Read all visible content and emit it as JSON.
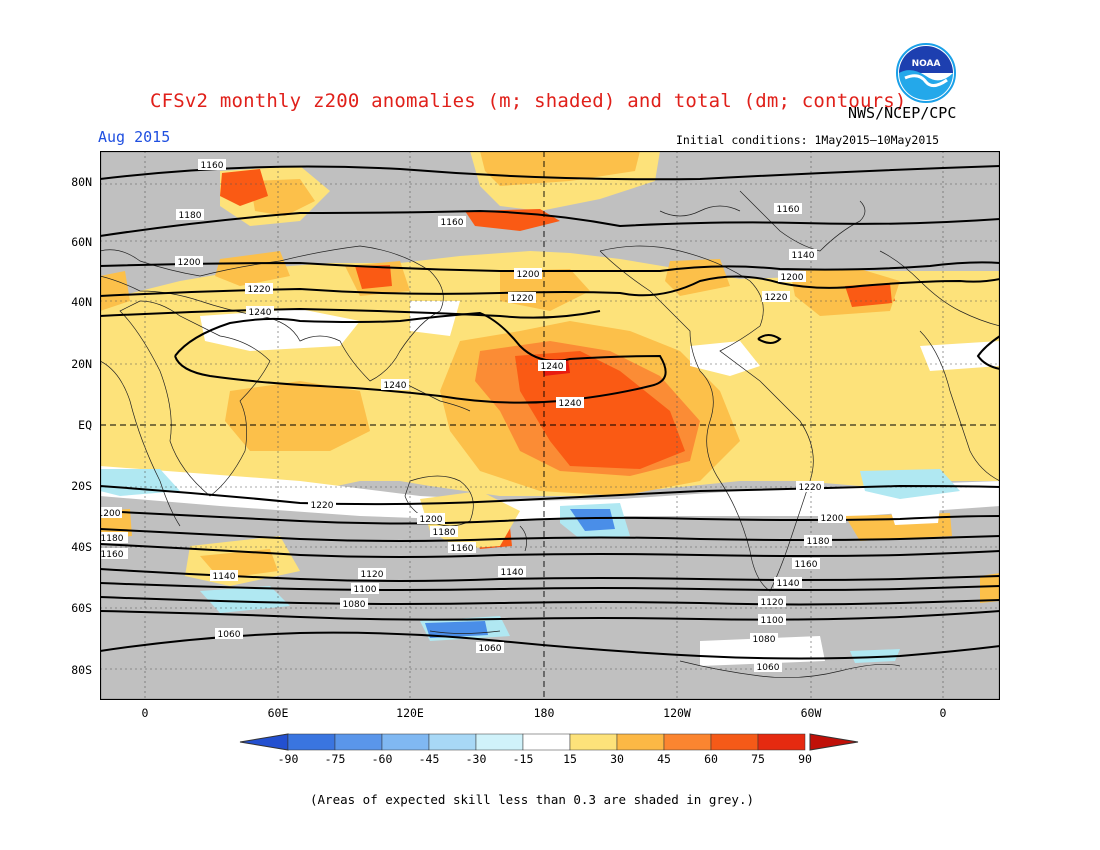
{
  "header": {
    "title": "CFSv2 monthly z200 anomalies (m; shaded) and total (dm; contours)",
    "agency": "NWS/NCEP/CPC",
    "month": "Aug 2015",
    "initial_conditions": "Initial conditions: 1May2015–10May2015",
    "logo_text": "NOAA"
  },
  "map": {
    "lat_labels": [
      "80N",
      "60N",
      "40N",
      "20N",
      "EQ",
      "20S",
      "40S",
      "60S",
      "80S"
    ],
    "lon_labels": [
      "0",
      "60E",
      "120E",
      "180",
      "120W",
      "60W",
      "0"
    ],
    "contour_labels": [
      "1060",
      "1080",
      "1100",
      "1120",
      "1140",
      "1160",
      "1180",
      "1200",
      "1220",
      "1240"
    ],
    "colors": {
      "grey": "#c0c0c0",
      "white": "#ffffff",
      "yellow": "#fde27a",
      "light_orange": "#fcc04a",
      "orange": "#fb8c35",
      "dark_orange": "#fa5a14",
      "red": "#e81c10",
      "light_blue": "#b0e8f2",
      "mid_blue": "#7fbaf0",
      "blue": "#4a8ee8",
      "dark_blue": "#2860d8"
    }
  },
  "colorbar": {
    "labels": [
      "-90",
      "-75",
      "-60",
      "-45",
      "-30",
      "-15",
      "15",
      "30",
      "45",
      "60",
      "75",
      "90"
    ],
    "colors": [
      "#2350d0",
      "#3a75e0",
      "#5a96ea",
      "#80b8f2",
      "#a8d8f6",
      "#d0f2fa",
      "#ffffff",
      "#fde27a",
      "#fcb845",
      "#fb8530",
      "#f55a18",
      "#e52a10",
      "#c01008"
    ]
  },
  "note": "(Areas of expected skill less than 0.3 are shaded in grey.)"
}
